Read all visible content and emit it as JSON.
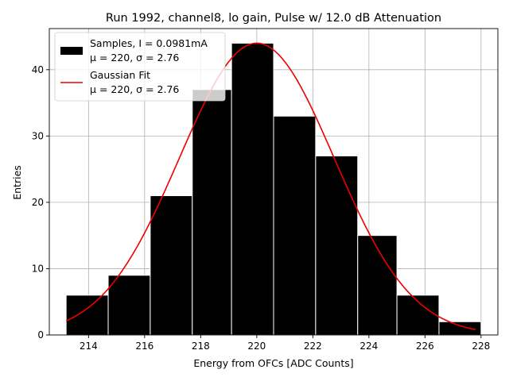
{
  "chart_data": {
    "type": "histogram",
    "title": "Run 1992, channel8, lo gain, Pulse w/ 12.0 dB Attenuation",
    "xlabel": "Energy from OFCs [ADC Counts]",
    "ylabel": "Entries",
    "xlim": [
      212.6,
      228.6
    ],
    "ylim": [
      0,
      46.2
    ],
    "xticks": [
      214,
      216,
      218,
      220,
      222,
      224,
      226,
      228
    ],
    "yticks": [
      0,
      10,
      20,
      30,
      40
    ],
    "grid": true,
    "bins": [
      {
        "left": 213.2,
        "right": 214.7,
        "count": 6
      },
      {
        "left": 214.7,
        "right": 216.2,
        "count": 9
      },
      {
        "left": 216.2,
        "right": 217.7,
        "count": 21
      },
      {
        "left": 217.7,
        "right": 219.1,
        "count": 37
      },
      {
        "left": 219.1,
        "right": 220.6,
        "count": 44
      },
      {
        "left": 220.6,
        "right": 222.1,
        "count": 33
      },
      {
        "left": 222.1,
        "right": 223.6,
        "count": 27
      },
      {
        "left": 223.6,
        "right": 225.0,
        "count": 15
      },
      {
        "left": 225.0,
        "right": 226.5,
        "count": 6
      },
      {
        "left": 226.5,
        "right": 228.0,
        "count": 2
      }
    ],
    "fit": {
      "type": "gaussian",
      "mu": 220.0,
      "sigma": 2.76,
      "amplitude": 44.0,
      "x_range": [
        213.2,
        227.8
      ],
      "color": "#ee0000"
    },
    "legend": {
      "position": "upper-left",
      "entries": [
        {
          "label_line1": "Samples, I = 0.0981mA",
          "label_line2": "μ = 220, σ = 2.76",
          "marker": "bar",
          "color": "#000000"
        },
        {
          "label_line1": "Gaussian Fit",
          "label_line2": "μ = 220, σ = 2.76",
          "marker": "line",
          "color": "#ee0000"
        }
      ]
    }
  }
}
